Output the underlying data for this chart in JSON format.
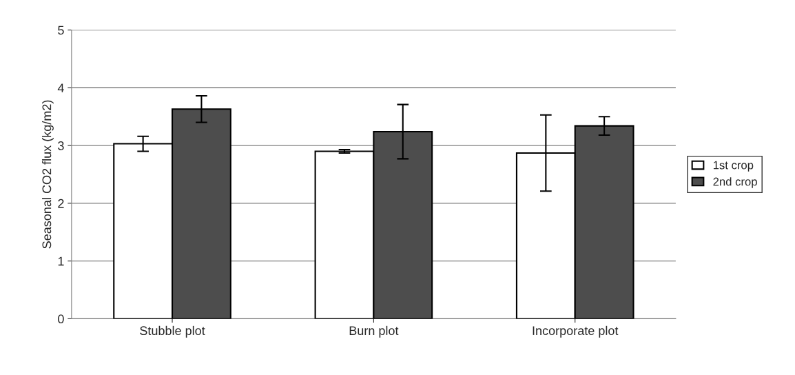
{
  "chart_data": {
    "type": "bar",
    "ylabel": "Seasonal CO2 flux (kg/m2)",
    "categories": [
      "Stubble plot",
      "Burn plot",
      "Incorporate plot"
    ],
    "series": [
      {
        "name": "1st crop",
        "color": "#ffffff",
        "values": [
          3.03,
          2.9,
          2.87
        ],
        "errors": [
          0.13,
          0.03,
          0.66
        ]
      },
      {
        "name": "2nd crop",
        "color": "#4d4d4d",
        "values": [
          3.63,
          3.24,
          3.34
        ],
        "errors": [
          0.23,
          0.47,
          0.16
        ]
      }
    ],
    "ylim": [
      0,
      5
    ],
    "yticks": [
      0,
      1,
      2,
      3,
      4,
      5
    ],
    "grid": "y",
    "legend": "right"
  }
}
